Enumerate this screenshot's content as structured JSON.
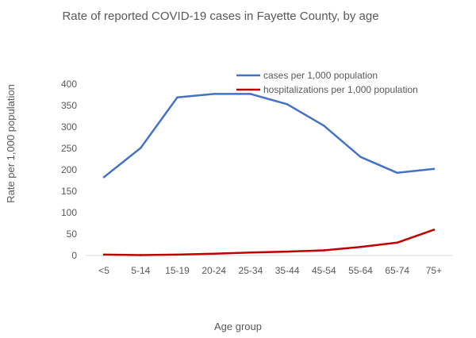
{
  "chart_data": {
    "type": "line",
    "title": "Rate of reported COVID-19 cases in Fayette County, by age",
    "xlabel": "Age group",
    "ylabel": "Rate per 1,000 population",
    "categories": [
      "<5",
      "5-14",
      "15-19",
      "20-24",
      "25-34",
      "35-44",
      "45-54",
      "55-64",
      "65-74",
      "75+"
    ],
    "ylim": [
      0,
      400
    ],
    "yticks": [
      0,
      50,
      100,
      150,
      200,
      250,
      300,
      350,
      400
    ],
    "grid": false,
    "legend": "top-right",
    "series": [
      {
        "name": "cases per 1,000 population",
        "color": "#4472C4",
        "values": [
          183,
          251,
          369,
          377,
          377,
          353,
          303,
          230,
          193,
          202
        ]
      },
      {
        "name": "hospitalizations per 1,000 population",
        "color": "#C00000",
        "values": [
          2,
          1,
          2,
          4,
          7,
          9,
          12,
          20,
          30,
          60
        ]
      }
    ]
  }
}
